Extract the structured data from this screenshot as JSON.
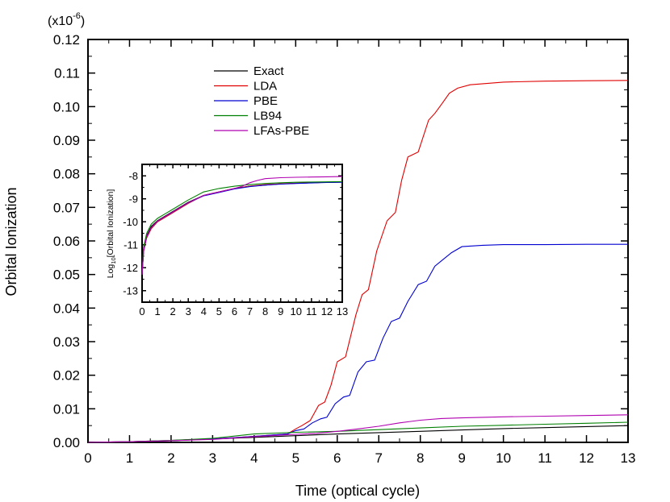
{
  "chart_data": [
    {
      "type": "line",
      "title": "",
      "xlabel": "Time (optical cycle)",
      "ylabel": "Orbital Ionization",
      "y_scale_label": "(x10",
      "y_scale_exp": "-6",
      "y_scale_close": ")",
      "xlim": [
        0,
        13
      ],
      "ylim": [
        0,
        0.12
      ],
      "xticks": [
        0,
        1,
        2,
        3,
        4,
        5,
        6,
        7,
        8,
        9,
        10,
        11,
        12,
        13
      ],
      "xtick_labels": [
        "0",
        "1",
        "2",
        "3",
        "4",
        "5",
        "6",
        "7",
        "8",
        "9",
        "10",
        "11",
        "12",
        "13"
      ],
      "yticks": [
        0,
        0.01,
        0.02,
        0.03,
        0.04,
        0.05,
        0.06,
        0.07,
        0.08,
        0.09,
        0.1,
        0.11,
        0.12
      ],
      "ytick_labels": [
        "0.00",
        "0.01",
        "0.02",
        "0.03",
        "0.04",
        "0.05",
        "0.06",
        "0.07",
        "0.08",
        "0.09",
        "0.10",
        "0.11",
        "0.12"
      ],
      "legend_position": "upper-left",
      "series": [
        {
          "name": "Exact",
          "color": "#000000",
          "x": [
            0,
            1,
            2,
            3,
            4,
            5,
            6,
            7,
            8,
            9,
            10,
            11,
            12,
            13
          ],
          "y": [
            0,
            0.0002,
            0.0006,
            0.001,
            0.0015,
            0.002,
            0.0025,
            0.0029,
            0.0033,
            0.0037,
            0.0041,
            0.0044,
            0.0047,
            0.005
          ]
        },
        {
          "name": "LDA",
          "color": "#e00000",
          "x": [
            0,
            1,
            2,
            3,
            4,
            4.8,
            5.0,
            5.15,
            5.35,
            5.55,
            5.7,
            5.85,
            6.0,
            6.2,
            6.45,
            6.6,
            6.75,
            6.95,
            7.2,
            7.4,
            7.55,
            7.7,
            7.95,
            8.2,
            8.35,
            8.5,
            8.7,
            8.9,
            9.2,
            10,
            11,
            12,
            13
          ],
          "y": [
            0,
            0.0002,
            0.0005,
            0.001,
            0.0018,
            0.0025,
            0.004,
            0.005,
            0.0065,
            0.011,
            0.012,
            0.017,
            0.024,
            0.0255,
            0.038,
            0.044,
            0.0455,
            0.057,
            0.066,
            0.0685,
            0.078,
            0.085,
            0.0865,
            0.096,
            0.098,
            0.1005,
            0.104,
            0.1055,
            0.1065,
            0.1073,
            0.1076,
            0.1077,
            0.1078
          ]
        },
        {
          "name": "PBE",
          "color": "#0000d0",
          "x": [
            0,
            1,
            2,
            3,
            4,
            4.8,
            5.0,
            5.2,
            5.4,
            5.6,
            5.75,
            5.95,
            6.15,
            6.3,
            6.5,
            6.7,
            6.9,
            7.1,
            7.3,
            7.5,
            7.7,
            7.95,
            8.15,
            8.35,
            8.55,
            8.75,
            9.0,
            9.5,
            10,
            11,
            12,
            13
          ],
          "y": [
            0,
            0.0002,
            0.0005,
            0.001,
            0.0018,
            0.0025,
            0.0035,
            0.004,
            0.0058,
            0.007,
            0.0075,
            0.0115,
            0.0135,
            0.014,
            0.021,
            0.024,
            0.0245,
            0.031,
            0.036,
            0.037,
            0.042,
            0.047,
            0.048,
            0.0525,
            0.0545,
            0.0565,
            0.0583,
            0.0587,
            0.0589,
            0.0589,
            0.059,
            0.059
          ]
        },
        {
          "name": "LB94",
          "color": "#008000",
          "x": [
            0,
            1,
            2,
            3,
            4,
            5,
            6,
            7,
            8,
            9,
            10,
            11,
            12,
            13
          ],
          "y": [
            0,
            0.0002,
            0.0006,
            0.0012,
            0.0025,
            0.003,
            0.0033,
            0.0038,
            0.0043,
            0.0048,
            0.0051,
            0.0054,
            0.0057,
            0.006
          ]
        },
        {
          "name": "LFAs-PBE",
          "color": "#b000b0",
          "x": [
            0,
            1,
            2,
            3,
            4,
            5,
            5.5,
            6,
            6.5,
            7,
            7.5,
            8,
            8.5,
            9,
            10,
            11,
            12,
            13
          ],
          "y": [
            0,
            0.0002,
            0.0005,
            0.0009,
            0.0017,
            0.0024,
            0.0027,
            0.0033,
            0.004,
            0.0048,
            0.0058,
            0.0066,
            0.0071,
            0.0073,
            0.0076,
            0.0078,
            0.008,
            0.0082
          ]
        }
      ]
    },
    {
      "type": "line",
      "title": "",
      "xlabel": "",
      "ylabel_prefix": "Log",
      "ylabel_sub": "10",
      "ylabel_suffix": "[Orbital Ionization]",
      "xlim": [
        0,
        13
      ],
      "ylim": [
        -13.5,
        -7.5
      ],
      "xticks": [
        0,
        1,
        2,
        3,
        4,
        5,
        6,
        7,
        8,
        9,
        10,
        11,
        12,
        13
      ],
      "xtick_labels": [
        "0",
        "1",
        "2",
        "3",
        "4",
        "5",
        "6",
        "7",
        "8",
        "9",
        "10",
        "11",
        "12",
        "13"
      ],
      "yticks": [
        -8,
        -9,
        -10,
        -11,
        -12,
        -13
      ],
      "ytick_labels": [
        "-8",
        "-9",
        "-10",
        "-11",
        "-12",
        "-13"
      ],
      "series": [
        {
          "name": "Exact",
          "color": "#000000",
          "x": [
            0,
            0.1,
            0.3,
            0.6,
            1,
            1.5,
            2,
            3,
            4,
            5,
            6,
            7,
            8,
            9,
            10,
            11,
            12,
            13
          ],
          "y": [
            -12.3,
            -11.2,
            -10.6,
            -10.2,
            -9.95,
            -9.75,
            -9.55,
            -9.15,
            -8.85,
            -8.7,
            -8.55,
            -8.45,
            -8.4,
            -8.35,
            -8.32,
            -8.3,
            -8.28,
            -8.27
          ]
        },
        {
          "name": "LDA",
          "color": "#e00000",
          "x": [
            0,
            0.1,
            0.3,
            0.6,
            1,
            1.5,
            2,
            3,
            4,
            5,
            6,
            7,
            8,
            9,
            10,
            11,
            12,
            13
          ],
          "y": [
            -12.3,
            -11.3,
            -10.7,
            -10.3,
            -10.0,
            -9.8,
            -9.6,
            -9.2,
            -8.85,
            -8.7,
            -8.55,
            -8.45,
            -8.38,
            -8.35,
            -8.32,
            -8.3,
            -8.28,
            -8.27
          ]
        },
        {
          "name": "PBE",
          "color": "#0000d0",
          "x": [
            0,
            0.1,
            0.3,
            0.6,
            1,
            1.5,
            2,
            3,
            4,
            5,
            6,
            7,
            8,
            9,
            10,
            11,
            12,
            13
          ],
          "y": [
            -12.3,
            -11.25,
            -10.65,
            -10.25,
            -9.97,
            -9.77,
            -9.57,
            -9.17,
            -8.87,
            -8.72,
            -8.57,
            -8.47,
            -8.4,
            -8.36,
            -8.33,
            -8.31,
            -8.29,
            -8.28
          ]
        },
        {
          "name": "LB94",
          "color": "#008000",
          "x": [
            0,
            0.1,
            0.3,
            0.6,
            1,
            1.5,
            2,
            3,
            4,
            5,
            6,
            7,
            8,
            9,
            10,
            11,
            12,
            13
          ],
          "y": [
            -12.3,
            -11.1,
            -10.5,
            -10.1,
            -9.85,
            -9.65,
            -9.45,
            -9.05,
            -8.7,
            -8.55,
            -8.45,
            -8.38,
            -8.33,
            -8.3,
            -8.28,
            -8.27,
            -8.26,
            -8.25
          ]
        },
        {
          "name": "LFAs-PBE",
          "color": "#b000b0",
          "x": [
            0,
            0.1,
            0.3,
            0.6,
            1,
            1.5,
            2,
            3,
            4,
            5,
            6,
            6.5,
            7,
            7.5,
            8,
            9,
            10,
            11,
            12,
            13
          ],
          "y": [
            -12.3,
            -11.25,
            -10.65,
            -10.25,
            -9.97,
            -9.77,
            -9.57,
            -9.17,
            -8.85,
            -8.7,
            -8.55,
            -8.45,
            -8.3,
            -8.2,
            -8.12,
            -8.08,
            -8.06,
            -8.05,
            -8.04,
            -8.03
          ]
        }
      ]
    }
  ]
}
